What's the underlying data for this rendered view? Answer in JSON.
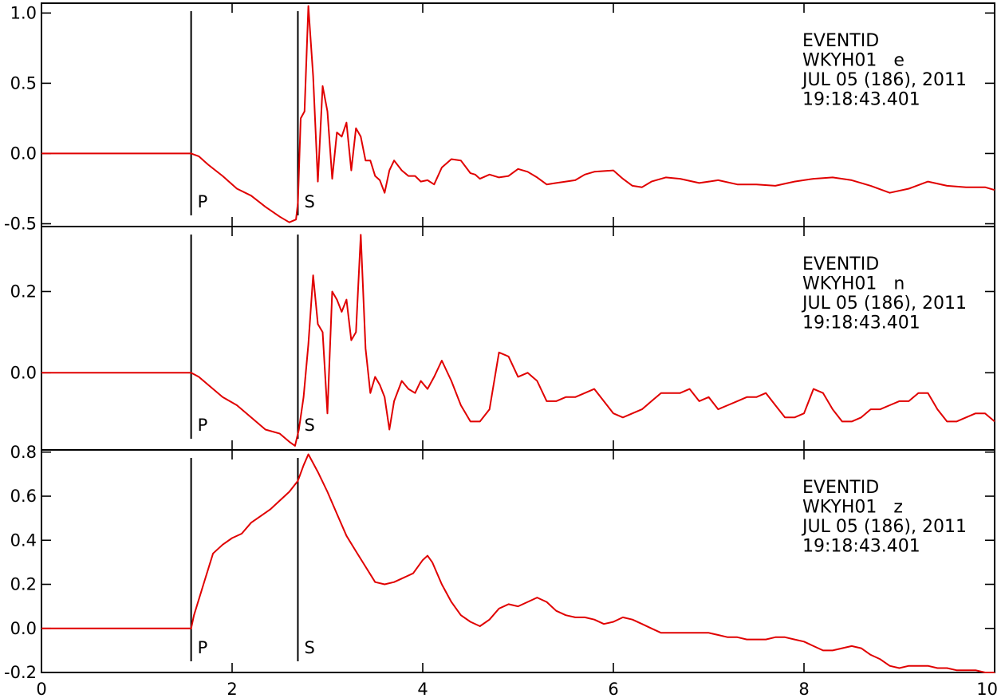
{
  "colors": {
    "trace": "#e00000",
    "axis": "#000000",
    "background": "#ffffff"
  },
  "chart_data": {
    "type": "line",
    "grid": false,
    "x_axis": {
      "range": [
        0,
        10
      ],
      "ticks": [
        0,
        2,
        4,
        6,
        8,
        10
      ],
      "tick_labels": [
        "0",
        "2",
        "4",
        "6",
        "8",
        "10"
      ]
    },
    "picks": [
      {
        "label": "P",
        "time": 1.57
      },
      {
        "label": "S",
        "time": 2.69
      }
    ],
    "panels": [
      {
        "component": "e",
        "info": [
          "EVENTID",
          "WKYH01   e",
          "JUL 05 (186), 2011",
          "19:18:43.401"
        ],
        "ylim": [
          -0.52,
          1.07
        ],
        "yticks": [
          -0.5,
          0.0,
          0.5,
          1.0
        ],
        "ytick_labels": [
          "-0.5",
          "0.0",
          "0.5",
          "1.0"
        ],
        "x": [
          0,
          0.5,
          1.0,
          1.5,
          1.57,
          1.65,
          1.75,
          1.9,
          2.05,
          2.2,
          2.35,
          2.5,
          2.6,
          2.67,
          2.69,
          2.72,
          2.76,
          2.8,
          2.85,
          2.9,
          2.95,
          3.0,
          3.05,
          3.1,
          3.15,
          3.2,
          3.25,
          3.3,
          3.35,
          3.4,
          3.45,
          3.5,
          3.55,
          3.6,
          3.65,
          3.7,
          3.78,
          3.85,
          3.92,
          3.98,
          4.05,
          4.12,
          4.2,
          4.3,
          4.4,
          4.5,
          4.55,
          4.6,
          4.7,
          4.8,
          4.9,
          5.0,
          5.1,
          5.2,
          5.3,
          5.4,
          5.5,
          5.6,
          5.7,
          5.8,
          6.0,
          6.1,
          6.2,
          6.3,
          6.4,
          6.55,
          6.7,
          6.9,
          7.1,
          7.3,
          7.5,
          7.7,
          7.9,
          8.1,
          8.3,
          8.5,
          8.7,
          8.9,
          9.1,
          9.3,
          9.5,
          9.7,
          9.9,
          10.0
        ],
        "y": [
          0.0,
          0.0,
          0.0,
          0.0,
          0.0,
          -0.02,
          -0.08,
          -0.16,
          -0.25,
          -0.3,
          -0.38,
          -0.45,
          -0.49,
          -0.47,
          -0.35,
          0.25,
          0.3,
          1.05,
          0.55,
          -0.2,
          0.48,
          0.3,
          -0.18,
          0.15,
          0.12,
          0.22,
          -0.12,
          0.18,
          0.12,
          -0.05,
          -0.05,
          -0.16,
          -0.19,
          -0.28,
          -0.12,
          -0.05,
          -0.12,
          -0.16,
          -0.16,
          -0.2,
          -0.19,
          -0.22,
          -0.1,
          -0.04,
          -0.05,
          -0.14,
          -0.15,
          -0.18,
          -0.15,
          -0.17,
          -0.16,
          -0.11,
          -0.13,
          -0.17,
          -0.22,
          -0.21,
          -0.2,
          -0.19,
          -0.15,
          -0.13,
          -0.12,
          -0.18,
          -0.23,
          -0.24,
          -0.2,
          -0.17,
          -0.18,
          -0.21,
          -0.19,
          -0.22,
          -0.22,
          -0.23,
          -0.2,
          -0.18,
          -0.17,
          -0.19,
          -0.23,
          -0.28,
          -0.25,
          -0.2,
          -0.23,
          -0.24,
          -0.24,
          -0.26
        ]
      },
      {
        "component": "n",
        "info": [
          "EVENTID",
          "WKYH01   n",
          "JUL 05 (186), 2011",
          "19:18:43.401"
        ],
        "ylim": [
          -0.19,
          0.36
        ],
        "yticks": [
          0.0,
          0.2
        ],
        "ytick_labels": [
          "0.0",
          "0.2"
        ],
        "x": [
          0,
          0.5,
          1.0,
          1.5,
          1.57,
          1.65,
          1.75,
          1.9,
          2.05,
          2.2,
          2.35,
          2.5,
          2.6,
          2.66,
          2.7,
          2.75,
          2.8,
          2.85,
          2.9,
          2.95,
          3.0,
          3.05,
          3.1,
          3.15,
          3.2,
          3.25,
          3.3,
          3.35,
          3.4,
          3.45,
          3.5,
          3.55,
          3.6,
          3.65,
          3.7,
          3.78,
          3.85,
          3.92,
          3.98,
          4.05,
          4.12,
          4.2,
          4.3,
          4.4,
          4.5,
          4.6,
          4.7,
          4.8,
          4.9,
          5.0,
          5.1,
          5.2,
          5.3,
          5.4,
          5.5,
          5.6,
          5.7,
          5.8,
          6.0,
          6.1,
          6.2,
          6.3,
          6.4,
          6.5,
          6.6,
          6.7,
          6.8,
          6.9,
          7.0,
          7.1,
          7.2,
          7.3,
          7.4,
          7.5,
          7.6,
          7.7,
          7.8,
          7.9,
          8.0,
          8.1,
          8.2,
          8.3,
          8.4,
          8.5,
          8.6,
          8.7,
          8.8,
          8.9,
          9.0,
          9.1,
          9.2,
          9.3,
          9.4,
          9.5,
          9.6,
          9.7,
          9.8,
          9.9,
          10.0
        ],
        "y": [
          0.0,
          0.0,
          0.0,
          0.0,
          0.0,
          -0.01,
          -0.03,
          -0.06,
          -0.08,
          -0.11,
          -0.14,
          -0.15,
          -0.17,
          -0.18,
          -0.14,
          -0.06,
          0.07,
          0.24,
          0.12,
          0.1,
          -0.1,
          0.2,
          0.18,
          0.15,
          0.18,
          0.08,
          0.1,
          0.34,
          0.06,
          -0.05,
          -0.01,
          -0.03,
          -0.06,
          -0.14,
          -0.07,
          -0.02,
          -0.04,
          -0.05,
          -0.02,
          -0.04,
          -0.01,
          0.03,
          -0.02,
          -0.08,
          -0.12,
          -0.12,
          -0.09,
          0.05,
          0.04,
          -0.01,
          0.0,
          -0.02,
          -0.07,
          -0.07,
          -0.06,
          -0.06,
          -0.05,
          -0.04,
          -0.1,
          -0.11,
          -0.1,
          -0.09,
          -0.07,
          -0.05,
          -0.05,
          -0.05,
          -0.04,
          -0.07,
          -0.06,
          -0.09,
          -0.08,
          -0.07,
          -0.06,
          -0.06,
          -0.05,
          -0.08,
          -0.11,
          -0.11,
          -0.1,
          -0.04,
          -0.05,
          -0.09,
          -0.12,
          -0.12,
          -0.11,
          -0.09,
          -0.09,
          -0.08,
          -0.07,
          -0.07,
          -0.05,
          -0.05,
          -0.09,
          -0.12,
          -0.12,
          -0.11,
          -0.1,
          -0.1,
          -0.12
        ]
      },
      {
        "component": "z",
        "info": [
          "EVENTID",
          "WKYH01   z",
          "JUL 05 (186), 2011",
          "19:18:43.401"
        ],
        "ylim": [
          -0.2,
          0.81
        ],
        "yticks": [
          -0.2,
          0.0,
          0.2,
          0.4,
          0.6,
          0.8
        ],
        "ytick_labels": [
          "-0.2",
          "0.0",
          "0.2",
          "0.4",
          "0.6",
          "0.8"
        ],
        "x": [
          0,
          0.5,
          1.0,
          1.5,
          1.57,
          1.6,
          1.7,
          1.8,
          1.9,
          2.0,
          2.1,
          2.2,
          2.3,
          2.4,
          2.5,
          2.6,
          2.69,
          2.75,
          2.8,
          2.85,
          2.9,
          3.0,
          3.1,
          3.2,
          3.3,
          3.4,
          3.5,
          3.6,
          3.7,
          3.8,
          3.9,
          4.0,
          4.05,
          4.1,
          4.2,
          4.3,
          4.4,
          4.5,
          4.6,
          4.7,
          4.8,
          4.9,
          5.0,
          5.1,
          5.2,
          5.3,
          5.4,
          5.5,
          5.6,
          5.7,
          5.8,
          5.9,
          6.0,
          6.1,
          6.2,
          6.3,
          6.4,
          6.5,
          6.6,
          6.7,
          6.8,
          6.9,
          7.0,
          7.1,
          7.2,
          7.3,
          7.4,
          7.5,
          7.6,
          7.7,
          7.8,
          7.9,
          8.0,
          8.1,
          8.2,
          8.3,
          8.4,
          8.5,
          8.6,
          8.7,
          8.8,
          8.9,
          9.0,
          9.1,
          9.2,
          9.3,
          9.4,
          9.5,
          9.6,
          9.7,
          9.8,
          9.9,
          10.0
        ],
        "y": [
          0.0,
          0.0,
          0.0,
          0.0,
          0.0,
          0.06,
          0.2,
          0.34,
          0.38,
          0.41,
          0.43,
          0.48,
          0.51,
          0.54,
          0.58,
          0.62,
          0.67,
          0.74,
          0.79,
          0.75,
          0.71,
          0.62,
          0.52,
          0.42,
          0.35,
          0.28,
          0.21,
          0.2,
          0.21,
          0.23,
          0.25,
          0.31,
          0.33,
          0.3,
          0.2,
          0.12,
          0.06,
          0.03,
          0.01,
          0.04,
          0.09,
          0.11,
          0.1,
          0.12,
          0.14,
          0.12,
          0.08,
          0.06,
          0.05,
          0.05,
          0.04,
          0.02,
          0.03,
          0.05,
          0.04,
          0.02,
          0.0,
          -0.02,
          -0.02,
          -0.02,
          -0.02,
          -0.02,
          -0.02,
          -0.03,
          -0.04,
          -0.04,
          -0.05,
          -0.05,
          -0.05,
          -0.04,
          -0.04,
          -0.05,
          -0.06,
          -0.08,
          -0.1,
          -0.1,
          -0.09,
          -0.08,
          -0.09,
          -0.12,
          -0.14,
          -0.17,
          -0.18,
          -0.17,
          -0.17,
          -0.17,
          -0.18,
          -0.18,
          -0.19,
          -0.19,
          -0.19,
          -0.2,
          -0.2
        ]
      }
    ]
  }
}
